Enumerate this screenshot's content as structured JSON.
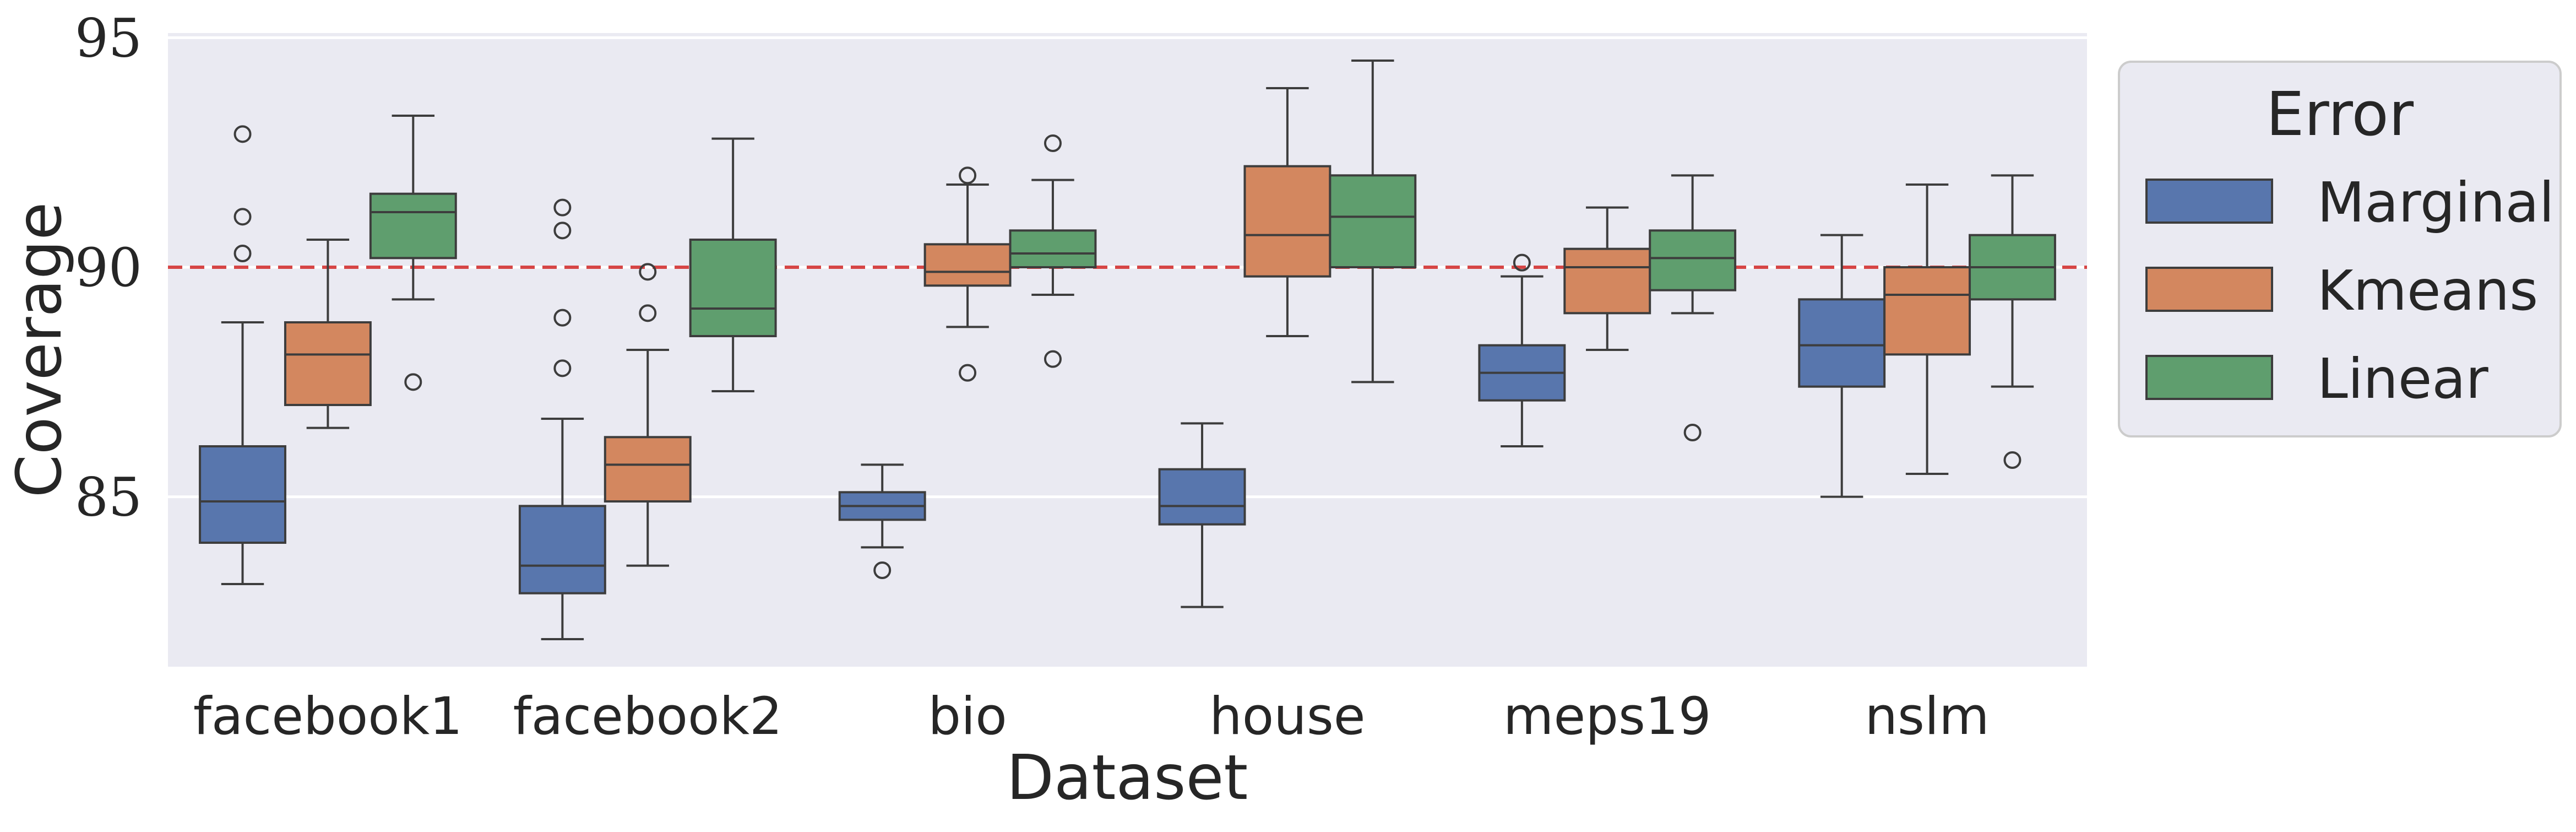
{
  "chart_data": {
    "type": "box",
    "xlabel": "Dataset",
    "ylabel": "Coverage",
    "ylim": [
      81.3,
      95.1
    ],
    "yticks": [
      85,
      90,
      95
    ],
    "grid": true,
    "reference_line": {
      "y": 90,
      "style": "dashed",
      "color": "#d64545"
    },
    "categories": [
      "facebook1",
      "facebook2",
      "bio",
      "house",
      "meps19",
      "nslm"
    ],
    "legend": {
      "title": "Error",
      "placement": "outside-right"
    },
    "series": [
      {
        "name": "Marginal",
        "color": "#5876ad",
        "boxes": [
          {
            "whislo": 83.1,
            "q1": 84.0,
            "med": 84.9,
            "q3": 86.1,
            "whishi": 88.8,
            "fliers": [
              90.3,
              91.1,
              92.9
            ]
          },
          {
            "whislo": 81.9,
            "q1": 82.9,
            "med": 83.5,
            "q3": 84.8,
            "whishi": 86.7,
            "fliers": [
              87.8,
              88.9,
              90.8,
              91.3
            ]
          },
          {
            "whislo": 83.9,
            "q1": 84.5,
            "med": 84.8,
            "q3": 85.1,
            "whishi": 85.7,
            "fliers": [
              83.4
            ]
          },
          {
            "whislo": 82.6,
            "q1": 84.4,
            "med": 84.8,
            "q3": 85.6,
            "whishi": 86.6,
            "fliers": []
          },
          {
            "whislo": 86.1,
            "q1": 87.1,
            "med": 87.7,
            "q3": 88.3,
            "whishi": 89.8,
            "fliers": [
              90.1
            ]
          },
          {
            "whislo": 85.0,
            "q1": 87.4,
            "med": 88.3,
            "q3": 89.3,
            "whishi": 90.7,
            "fliers": []
          }
        ]
      },
      {
        "name": "Kmeans",
        "color": "#d3875f",
        "boxes": [
          {
            "whislo": 86.5,
            "q1": 87.0,
            "med": 88.1,
            "q3": 88.8,
            "whishi": 90.6,
            "fliers": []
          },
          {
            "whislo": 83.5,
            "q1": 84.9,
            "med": 85.7,
            "q3": 86.3,
            "whishi": 88.2,
            "fliers": [
              89.0,
              89.9
            ]
          },
          {
            "whislo": 88.7,
            "q1": 89.6,
            "med": 89.9,
            "q3": 90.5,
            "whishi": 91.8,
            "fliers": [
              87.7,
              92.0
            ]
          },
          {
            "whislo": 88.5,
            "q1": 89.8,
            "med": 90.7,
            "q3": 92.2,
            "whishi": 93.9,
            "fliers": []
          },
          {
            "whislo": 88.2,
            "q1": 89.0,
            "med": 90.0,
            "q3": 90.4,
            "whishi": 91.3,
            "fliers": []
          },
          {
            "whislo": 85.5,
            "q1": 88.1,
            "med": 89.4,
            "q3": 90.0,
            "whishi": 91.8,
            "fliers": []
          }
        ]
      },
      {
        "name": "Linear",
        "color": "#5f9e6e",
        "boxes": [
          {
            "whislo": 89.3,
            "q1": 90.2,
            "med": 91.2,
            "q3": 91.6,
            "whishi": 93.3,
            "fliers": [
              87.5
            ]
          },
          {
            "whislo": 87.3,
            "q1": 88.5,
            "med": 89.1,
            "q3": 90.6,
            "whishi": 92.8,
            "fliers": []
          },
          {
            "whislo": 89.4,
            "q1": 90.0,
            "med": 90.3,
            "q3": 90.8,
            "whishi": 91.9,
            "fliers": [
              88.0,
              92.7
            ]
          },
          {
            "whislo": 87.5,
            "q1": 90.0,
            "med": 91.1,
            "q3": 92.0,
            "whishi": 94.5,
            "fliers": []
          },
          {
            "whislo": 89.0,
            "q1": 89.5,
            "med": 90.2,
            "q3": 90.8,
            "whishi": 92.0,
            "fliers": [
              86.4
            ]
          },
          {
            "whislo": 87.4,
            "q1": 89.3,
            "med": 90.0,
            "q3": 90.7,
            "whishi": 92.0,
            "fliers": [
              85.8
            ]
          }
        ]
      }
    ]
  }
}
